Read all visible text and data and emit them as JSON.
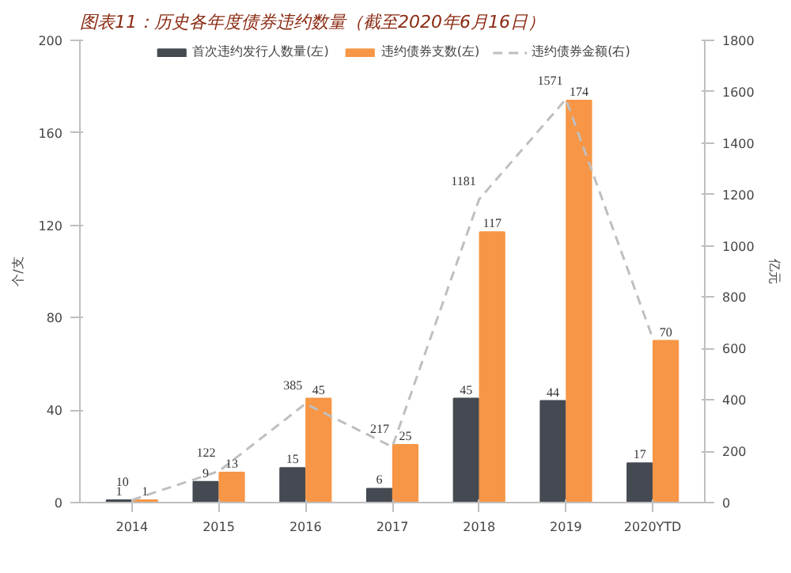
{
  "chart_data": {
    "type": "bar",
    "title": "图表11：历史各年度债券违约数量（截至2020年6月16日）",
    "ylabel": "个/支",
    "y2label": "亿元",
    "categories": [
      "2014",
      "2015",
      "2016",
      "2017",
      "2018",
      "2019",
      "2020YTD"
    ],
    "series": [
      {
        "name": "首次违约发行人数量(左)",
        "color": "#454a52",
        "values": [
          1,
          9,
          15,
          6,
          45,
          44,
          17
        ]
      },
      {
        "name": "违约债券支数(左)",
        "color": "#f79646",
        "values": [
          1,
          13,
          45,
          25,
          117,
          174,
          70
        ]
      },
      {
        "name": "违约债券金额(右)",
        "color": "#bfbfbf",
        "type": "line",
        "axis": "y2",
        "line_style": "dashed",
        "values": [
          10,
          122,
          385,
          217,
          1181,
          1571,
          640
        ],
        "value_labels": [
          "10",
          "122",
          "385",
          "217",
          "1181",
          "1571",
          null
        ]
      }
    ],
    "ylim": [
      0,
      200
    ],
    "yticks": [
      0,
      40,
      80,
      120,
      160,
      200
    ],
    "y2lim": [
      0,
      1800
    ],
    "y2ticks": [
      0,
      200,
      400,
      600,
      800,
      1000,
      1200,
      1400,
      1600,
      1800
    ],
    "data_labels": true,
    "grid": false,
    "legend": "top"
  }
}
